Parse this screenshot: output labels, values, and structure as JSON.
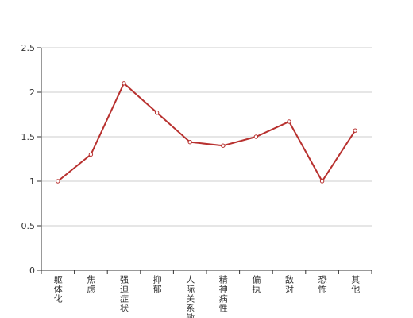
{
  "chart_data": {
    "type": "line",
    "categories": [
      "躯体化",
      "焦虑",
      "强迫症状",
      "抑郁",
      "人际关系敏感",
      "精神病性",
      "偏执",
      "敌对",
      "恐怖",
      "其他"
    ],
    "series": [
      {
        "color": "#b8312f",
        "values": [
          1.0,
          1.3,
          2.1,
          1.77,
          1.44,
          1.4,
          1.5,
          1.67,
          1.0,
          1.57
        ]
      }
    ],
    "ylim": [
      0,
      2.5
    ],
    "yticks": [
      0,
      0.5,
      1,
      1.5,
      2,
      2.5
    ],
    "grid": true
  }
}
